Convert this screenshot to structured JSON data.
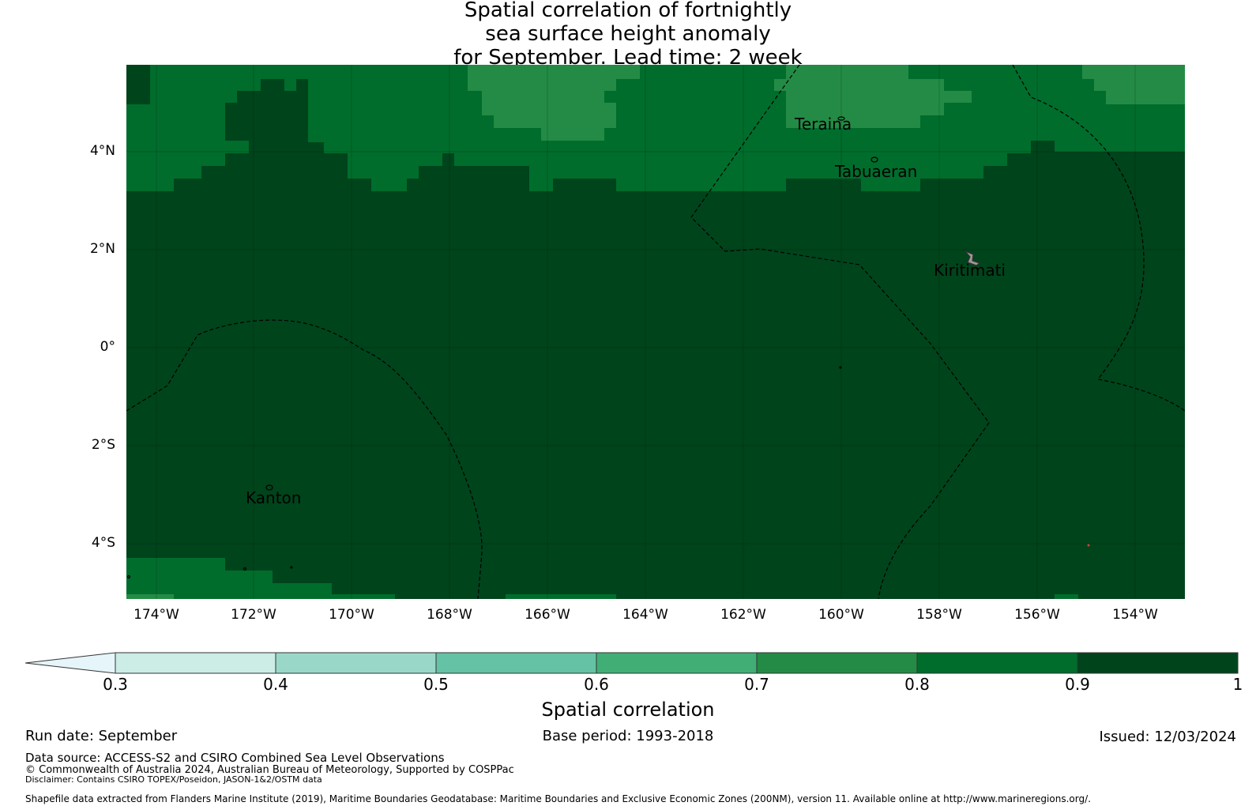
{
  "title": {
    "line1": "Spatial correlation of fortnightly",
    "line2": "sea surface height anomaly",
    "line3": "for September. Lead time: 2 week"
  },
  "map": {
    "lat_labels": [
      "4°N",
      "2°N",
      "0°",
      "2°S",
      "4°S"
    ],
    "lon_labels": [
      "174°W",
      "172°W",
      "170°W",
      "168°W",
      "166°W",
      "164°W",
      "162°W",
      "160°W",
      "158°W",
      "156°W",
      "154°W"
    ],
    "places": [
      "Teraina",
      "Tabuaeran",
      "Kiritimati",
      "Kanton"
    ],
    "colors": {
      "band_0_8_0_9": "#006d2c",
      "band_0_9_1": "#00441b",
      "band_0_7_0_8": "#238b45"
    }
  },
  "colorbar": {
    "label": "Spatial correlation",
    "ticks": [
      "0.3",
      "0.4",
      "0.5",
      "0.6",
      "0.7",
      "0.8",
      "0.9",
      "1"
    ],
    "colors": [
      "#e5f5f9",
      "#ccece6",
      "#99d8c9",
      "#66c2a4",
      "#41ae76",
      "#238b45",
      "#006d2c",
      "#00441b"
    ]
  },
  "footer": {
    "run_date": "Run date: September",
    "base_period": "Base period: 1993-2018",
    "issued": "Issued: 12/03/2024",
    "data_source": "Data source: ACCESS-S2 and CSIRO Combined Sea Level Observations",
    "copyright": "© Commonwealth of Australia 2024, Australian Bureau of Meteorology, Supported by COSPPac",
    "disclaimer": "Disclaimer: Contains CSIRO TOPEX/Poseidon, JASON-1&2/OSTM data",
    "shapefile": "Shapefile data extracted from Flanders Marine Institute (2019), Maritime Boundaries Geodatabase: Maritime Boundaries and Exclusive Economic Zones (200NM), version 11. Available online at http://www.marineregions.org/."
  }
}
